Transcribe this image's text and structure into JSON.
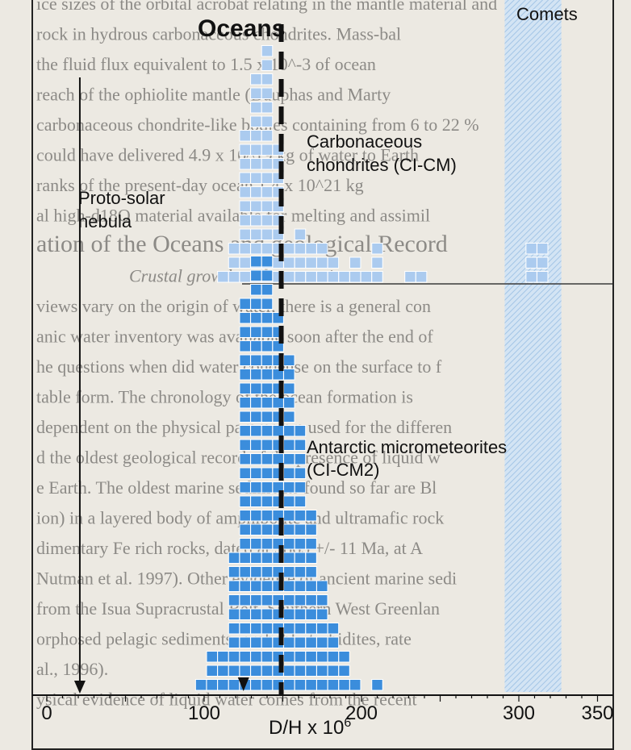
{
  "background_text": [
    "ice sizes of the orbital acrobat relating in the mantle material and",
    "rock in hydrous carbonaceous chondrites. Mass-bal",
    "the fluid flux equivalent to 1.5 x 10^-3 of ocean",
    "reach of the ophiolite mantle (Dauphas and Marty",
    "carbonaceous chondrite-like bodies containing from 6 to 22 %",
    "could have delivered 4.9 x 10^19 kg of water to Earth",
    "ranks of the present-day ocean 1.4 x 10^21 kg",
    "al high-d18O material available for melting and assimil",
    "ation of the Oceans and geological Record",
    "Crustal growth and maturation",
    "views vary on the origin of water, there is a general con",
    "anic water inventory was available soon after the end of",
    "he questions when did water condense on the surface to f",
    "table form. The chronology of the ocean formation is",
    "dependent on the physical parameters used for the differen",
    "d the oldest geological record of the presence of liquid w",
    "e Earth. The oldest marine sediments found so far are Bl",
    "ion) in a layered body of amphibolite and ultramafic rock",
    "dimentary Fe rich rocks, dated at 3865 +/- 11 Ma, at A",
    "Nutman et al. 1997). Other evidence of ancient marine sedi",
    "from the Isua Supracrustal Belt, Southern West Greenlan",
    "orphosed pelagic sediments, probably turbidites, rate",
    "al., 1996).",
    "ysical evidence of liquid water comes from the recent"
  ],
  "chart_data": {
    "type": "histogram",
    "xlabel": "D/H x 10",
    "xlabel_exp": "6",
    "x_ticks": [
      0,
      100,
      200,
      300,
      350
    ],
    "xlim": [
      -5,
      355
    ],
    "labels": {
      "oceans": "Oceans",
      "comets": "Comets",
      "chondrites_line1": "Carbonaceous",
      "chondrites_line2": "chondrites (CI-CM)",
      "micromet_line1": "Antarctic micrometeorites",
      "micromet_line2": "(CI-CM2)",
      "nebula_line1": "Proto-solar",
      "nebula_line2": "nebula"
    },
    "bin_width": 7,
    "oceans_value": 149,
    "proto_solar_value": 21,
    "micromet_mean": 125,
    "comets_range": [
      291,
      327
    ],
    "series": [
      {
        "name": "Carbonaceous chondrites (CI-CM)",
        "color": "#abcbef",
        "bins": [
          {
            "x": 112,
            "count": 1
          },
          {
            "x": 119,
            "count": 3
          },
          {
            "x": 126,
            "count": 11
          },
          {
            "x": 133,
            "count": 15
          },
          {
            "x": 140,
            "count": 17
          },
          {
            "x": 147,
            "count": 10
          },
          {
            "x": 154,
            "count": 3
          },
          {
            "x": 161,
            "count": 4
          },
          {
            "x": 168,
            "count": 3
          },
          {
            "x": 175,
            "count": 3
          },
          {
            "x": 182,
            "count": 2
          },
          {
            "x": 189,
            "count": 1
          },
          {
            "x": 196,
            "count": 2
          },
          {
            "x": 203,
            "count": 1
          },
          {
            "x": 210,
            "count": 3
          },
          {
            "x": 231,
            "count": 1
          },
          {
            "x": 238,
            "count": 1
          },
          {
            "x": 308,
            "count": 3
          },
          {
            "x": 315,
            "count": 3
          }
        ]
      },
      {
        "name": "Antarctic micrometeorites (CI-CM2)",
        "color": "#3b8ddc",
        "bins": [
          {
            "x": 98,
            "count": 1
          },
          {
            "x": 105,
            "count": 3
          },
          {
            "x": 112,
            "count": 3
          },
          {
            "x": 119,
            "count": 10
          },
          {
            "x": 126,
            "count": 28
          },
          {
            "x": 133,
            "count": 31
          },
          {
            "x": 140,
            "count": 31
          },
          {
            "x": 147,
            "count": 27
          },
          {
            "x": 154,
            "count": 24
          },
          {
            "x": 161,
            "count": 19
          },
          {
            "x": 168,
            "count": 13
          },
          {
            "x": 175,
            "count": 8
          },
          {
            "x": 182,
            "count": 5
          },
          {
            "x": 189,
            "count": 3
          },
          {
            "x": 196,
            "count": 1
          },
          {
            "x": 210,
            "count": 1
          }
        ]
      }
    ]
  }
}
